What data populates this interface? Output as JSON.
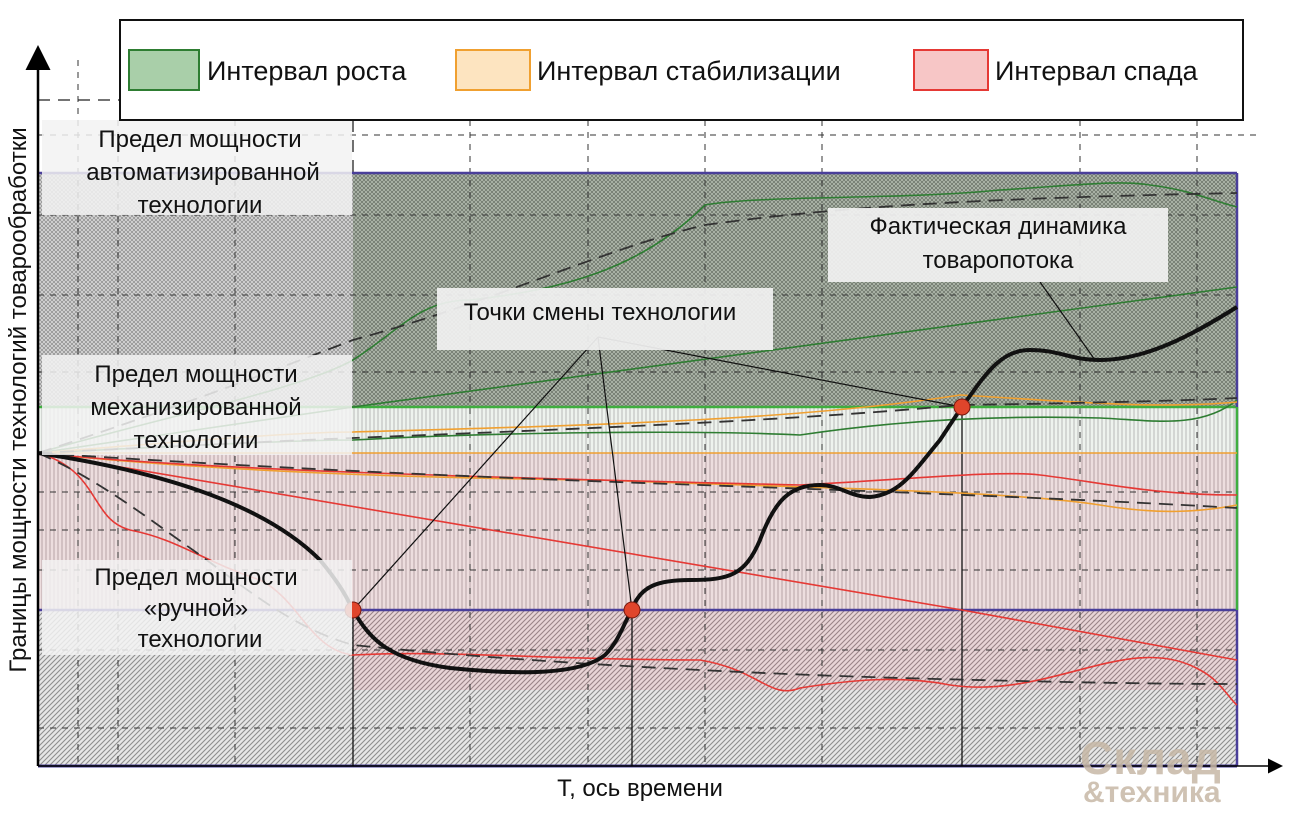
{
  "legend": {
    "items": [
      {
        "label": "Интервал роста",
        "fill": "#a9cfa9",
        "stroke": "#2e7d32"
      },
      {
        "label": "Интервал стабилизации",
        "fill": "#fde4c0",
        "stroke": "#f0a030"
      },
      {
        "label": "Интервал спада",
        "fill": "#f7c6c6",
        "stroke": "#e53935"
      }
    ]
  },
  "axes": {
    "y_label": "Границы мощности технологий товарообработки",
    "x_label": "Т, ось времени"
  },
  "zones": {
    "automated": [
      "Предел мощности",
      "автоматизированной",
      "технологии"
    ],
    "mechanized": [
      "Предел мощности",
      "механизированной",
      "технологии"
    ],
    "manual": [
      "Предел мощности",
      "«ручной»",
      "технологии"
    ]
  },
  "annotations": {
    "change_points": "Точки смены технологии",
    "actual": [
      "Фактическая динамика",
      "товаропотока"
    ]
  },
  "colors": {
    "automated_limit": "#4a3f9a",
    "mechanized_limit": "#3fae3f",
    "manual_limit": "#4a3f9a",
    "point": "#e0452b",
    "actual_curve": "#111111"
  },
  "watermark": [
    "Склад",
    "&техника"
  ]
}
